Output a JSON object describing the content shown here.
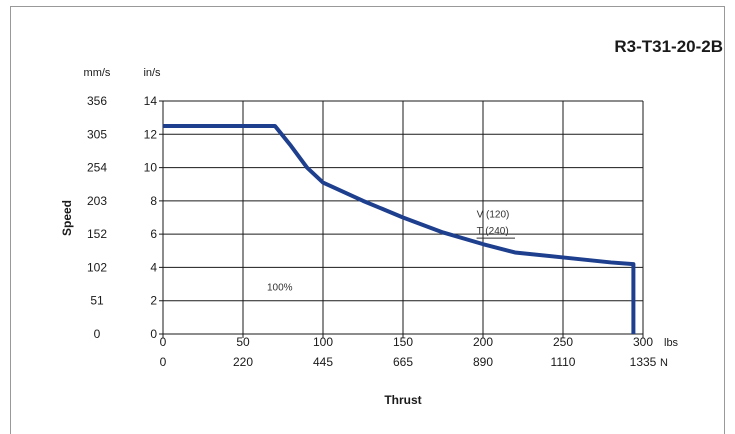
{
  "chart_data": {
    "type": "line",
    "title": "R3-T31-20-2B",
    "xlabel": "Thrust",
    "ylabel": "Speed",
    "x_unit_primary": "lbs",
    "x_unit_secondary": "N",
    "y_unit_primary": "in/s",
    "y_unit_secondary": "mm/s",
    "xlim": [
      0,
      300
    ],
    "ylim": [
      0,
      14
    ],
    "x_ticks": [
      "0",
      "50",
      "100",
      "150",
      "200",
      "250",
      "300"
    ],
    "x_ticks_secondary": [
      "0",
      "220",
      "445",
      "665",
      "890",
      "1110",
      "1335"
    ],
    "y_ticks": [
      "0",
      "2",
      "4",
      "6",
      "8",
      "10",
      "12",
      "14"
    ],
    "y_ticks_secondary": [
      "0",
      "51",
      "102",
      "152",
      "203",
      "254",
      "305",
      "356"
    ],
    "grid": true,
    "line_color": "#1e3f8e",
    "series": [
      {
        "x": [
          0,
          70,
          80,
          90,
          100,
          125,
          150,
          175,
          200,
          220,
          250,
          280,
          294,
          294
        ],
        "y": [
          12.5,
          12.5,
          11.3,
          10,
          9.1,
          8,
          7,
          6.1,
          5.4,
          4.9,
          4.6,
          4.3,
          4.2,
          0
        ]
      }
    ],
    "annotations": [
      {
        "text": "V (120)",
        "x": 196,
        "y": 7
      },
      {
        "text": "T (240)",
        "x": 196,
        "y": 6
      },
      {
        "text": "100%",
        "x": 65,
        "y": 2.6
      }
    ]
  }
}
